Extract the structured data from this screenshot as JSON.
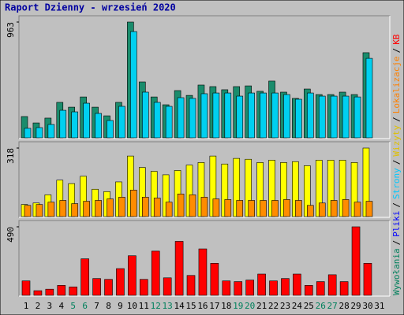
{
  "chart_data": {
    "type": "bar",
    "title": "Raport Dzienny -  wrzesień 2020",
    "categories": [
      "1",
      "2",
      "3",
      "4",
      "5",
      "6",
      "7",
      "8",
      "9",
      "10",
      "11",
      "12",
      "13",
      "14",
      "15",
      "16",
      "17",
      "18",
      "19",
      "20",
      "21",
      "22",
      "23",
      "24",
      "25",
      "26",
      "27",
      "28",
      "29",
      "30",
      "31"
    ],
    "category_colors": [
      "#000000",
      "#000000",
      "#000000",
      "#000000",
      "#00805c",
      "#00805c",
      "#000000",
      "#000000",
      "#000000",
      "#000000",
      "#000000",
      "#00805c",
      "#00805c",
      "#000000",
      "#000000",
      "#000000",
      "#000000",
      "#000000",
      "#00805c",
      "#00805c",
      "#000000",
      "#000000",
      "#000000",
      "#000000",
      "#000000",
      "#00805c",
      "#00805c",
      "#000000",
      "#000000",
      "#000000",
      "#000000"
    ],
    "legend_separator": "/",
    "legend": [
      {
        "name": "Wywołania",
        "color": "#00805c"
      },
      {
        "name": "Pliki",
        "color": "#0000ff"
      },
      {
        "name": "Strony",
        "color": "#00c8ff"
      },
      {
        "name": "Wizyty",
        "color": "#e0c000"
      },
      {
        "name": "Lokalizacje",
        "color": "#ff8000"
      },
      {
        "name": "KB",
        "color": "#ff0000"
      }
    ],
    "panels": [
      {
        "ylim": [
          0,
          963
        ],
        "yticks": [
          963
        ],
        "series": [
          {
            "name": "Wywołania",
            "color": "#1a8c6c",
            "values": [
              177,
              124,
              164,
              295,
              255,
              340,
              255,
              183,
              295,
              963,
              465,
              340,
              275,
              393,
              353,
              439,
              426,
              400,
              426,
              432,
              387,
              472,
              380,
              328,
              406,
              360,
              360,
              380,
              360,
              708,
              null
            ]
          },
          {
            "name": "Strony",
            "color": "#00d0f0",
            "values": [
              79,
              85,
              111,
              229,
              216,
              288,
              203,
              144,
              262,
              884,
              380,
              295,
              262,
              334,
              328,
              367,
              373,
              373,
              347,
              373,
              373,
              373,
              360,
              321,
              373,
              347,
              347,
              347,
              340,
              661,
              null
            ]
          }
        ]
      },
      {
        "ylim": [
          0,
          318
        ],
        "yticks": [
          318
        ],
        "series": [
          {
            "name": "Wizyty",
            "color": "#ffff00",
            "values": [
              56,
              63,
              101,
              169,
              153,
              187,
              127,
              116,
              161,
              281,
              228,
              210,
              194,
              214,
              239,
              251,
              281,
              244,
              270,
              266,
              251,
              262,
              251,
              255,
              236,
              262,
              262,
              262,
              251,
              318,
              null
            ]
          },
          {
            "name": "Lokalizacje",
            "color": "#ff8c00",
            "values": [
              52,
              56,
              67,
              75,
              60,
              71,
              75,
              82,
              90,
              123,
              90,
              86,
              67,
              105,
              101,
              90,
              82,
              79,
              75,
              75,
              75,
              75,
              79,
              75,
              52,
              63,
              75,
              79,
              67,
              71,
              null
            ]
          }
        ]
      },
      {
        "ylim": [
          0,
          490
        ],
        "yticks": [
          490
        ],
        "series": [
          {
            "name": "KB",
            "color": "#ff0000",
            "values": [
              103,
              33,
              44,
              71,
              60,
              261,
              120,
              114,
              191,
              283,
              114,
              316,
              125,
              386,
              142,
              332,
              229,
              103,
              98,
              109,
              152,
              103,
              120,
              152,
              71,
              98,
              147,
              98,
              490,
              229,
              null
            ]
          }
        ]
      }
    ]
  }
}
